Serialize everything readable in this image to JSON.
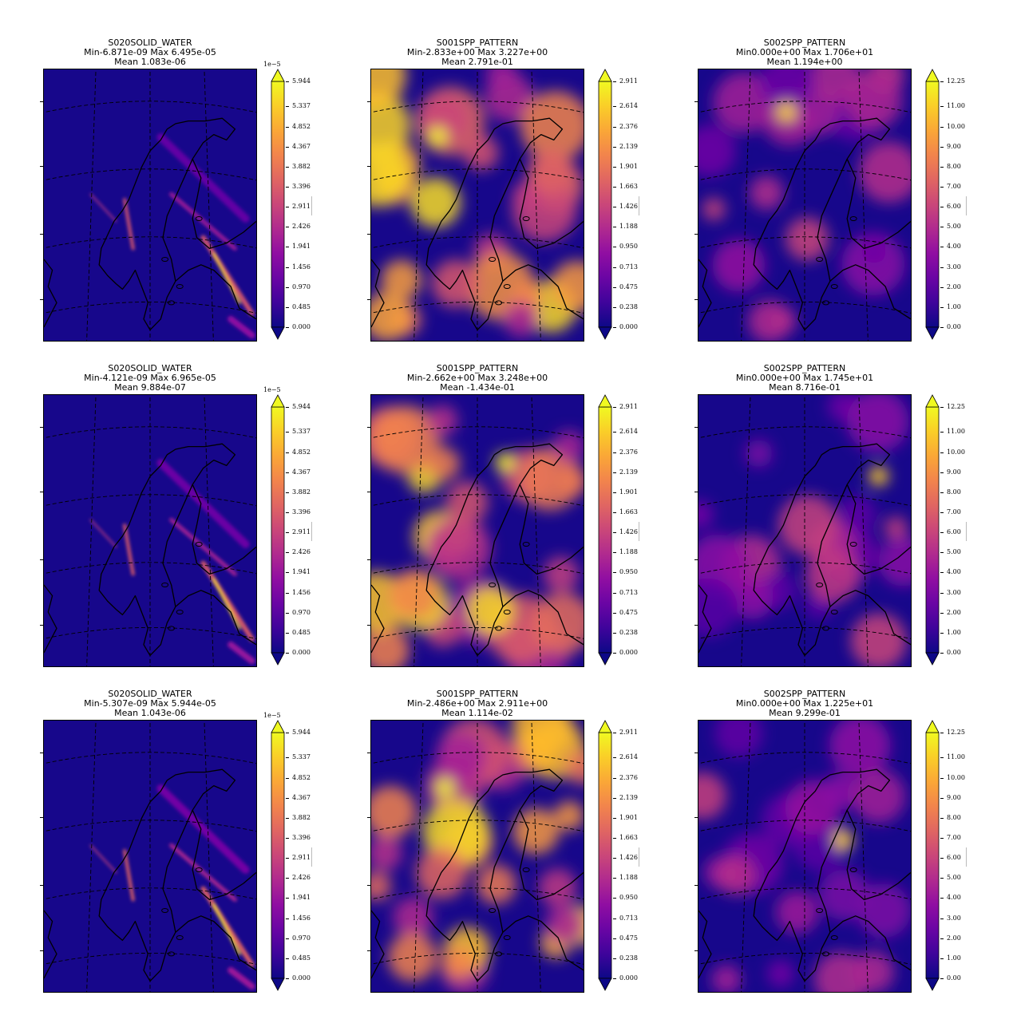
{
  "panels": [
    {
      "row": 0,
      "col": 0,
      "var": "S020SOLID_WATER",
      "minmax": "Min-6.871e-09 Max 6.495e-05",
      "mean": "Mean 1.083e-06",
      "cmap": "sw",
      "variant": 0
    },
    {
      "row": 0,
      "col": 1,
      "var": "S001SPP_PATTERN",
      "minmax": "Min-2.833e+00 Max 3.227e+00",
      "mean": "Mean 2.791e-01",
      "cmap": "p1",
      "variant": 0
    },
    {
      "row": 0,
      "col": 2,
      "var": "S002SPP_PATTERN",
      "minmax": "Min0.000e+00 Max 1.706e+01",
      "mean": "Mean 1.194e+00",
      "cmap": "p2",
      "variant": 0
    },
    {
      "row": 1,
      "col": 0,
      "var": "S020SOLID_WATER",
      "minmax": "Min-4.121e-09 Max 6.965e-05",
      "mean": "Mean 9.884e-07",
      "cmap": "sw",
      "variant": 1
    },
    {
      "row": 1,
      "col": 1,
      "var": "S001SPP_PATTERN",
      "minmax": "Min-2.662e+00 Max 3.248e+00",
      "mean": "Mean -1.434e-01",
      "cmap": "p1",
      "variant": 1
    },
    {
      "row": 1,
      "col": 2,
      "var": "S002SPP_PATTERN",
      "minmax": "Min0.000e+00 Max 1.745e+01",
      "mean": "Mean 8.716e-01",
      "cmap": "p2",
      "variant": 1
    },
    {
      "row": 2,
      "col": 0,
      "var": "S020SOLID_WATER",
      "minmax": "Min-5.307e-09 Max 5.944e-05",
      "mean": "Mean 1.043e-06",
      "cmap": "sw",
      "variant": 2
    },
    {
      "row": 2,
      "col": 1,
      "var": "S001SPP_PATTERN",
      "minmax": "Min-2.486e+00 Max 2.911e+00",
      "mean": "Mean 1.114e-02",
      "cmap": "p1",
      "variant": 2
    },
    {
      "row": 2,
      "col": 2,
      "var": "S002SPP_PATTERN",
      "minmax": "Min0.000e+00 Max 1.225e+01",
      "mean": "Mean 9.299e-01",
      "cmap": "p2",
      "variant": 2
    }
  ],
  "colorbars": {
    "sw": {
      "offset": "1e−5",
      "ticks": [
        "0.000",
        "0.485",
        "0.970",
        "1.456",
        "1.941",
        "2.426",
        "2.911",
        "3.396",
        "3.882",
        "4.367",
        "4.852",
        "5.337",
        "5.944"
      ],
      "vmax": 5.944
    },
    "p1": {
      "offset": "",
      "ticks": [
        "0.000",
        "0.238",
        "0.475",
        "0.713",
        "0.950",
        "1.188",
        "1.426",
        "1.663",
        "1.901",
        "2.139",
        "2.376",
        "2.614",
        "2.911"
      ],
      "vmax": 2.911
    },
    "p2": {
      "offset": "",
      "ticks": [
        "0.00",
        "1.00",
        "2.00",
        "3.00",
        "4.00",
        "5.00",
        "6.00",
        "7.00",
        "8.00",
        "9.00",
        "10.00",
        "11.00",
        "12.25"
      ],
      "vmax": 12.25
    }
  },
  "colormap": "plasma",
  "colors": {
    "low": "#0d0887",
    "mid": "#cc4778",
    "high": "#f0f921",
    "coast": "#000000",
    "grid": "#000000"
  },
  "chart_data": {
    "type": "heatmap",
    "layout": "3x3 grid of map panels",
    "colormap": "plasma",
    "colorbar_extend": "both",
    "gridlines": "dashed",
    "panels": [
      {
        "title": "S020SOLID_WATER",
        "subtitle": [
          "Min-6.871e-09 Max 6.495e-05",
          "Mean 1.083e-06"
        ],
        "colorbar_ticks": [
          0.0,
          0.485,
          0.97,
          1.456,
          1.941,
          2.426,
          2.911,
          3.396,
          3.882,
          4.367,
          4.852,
          5.337,
          5.944
        ],
        "colorbar_multiplier": "1e-5"
      },
      {
        "title": "S001SPP_PATTERN",
        "subtitle": [
          "Min-2.833e+00 Max 3.227e+00",
          "Mean 2.791e-01"
        ],
        "colorbar_ticks": [
          0.0,
          0.238,
          0.475,
          0.713,
          0.95,
          1.188,
          1.426,
          1.663,
          1.901,
          2.139,
          2.376,
          2.614,
          2.911
        ]
      },
      {
        "title": "S002SPP_PATTERN",
        "subtitle": [
          "Min0.000e+00 Max 1.706e+01",
          "Mean 1.194e+00"
        ],
        "colorbar_ticks": [
          0.0,
          1.0,
          2.0,
          3.0,
          4.0,
          5.0,
          6.0,
          7.0,
          8.0,
          9.0,
          10.0,
          11.0,
          12.25
        ]
      },
      {
        "title": "S020SOLID_WATER",
        "subtitle": [
          "Min-4.121e-09 Max 6.965e-05",
          "Mean 9.884e-07"
        ],
        "colorbar_ticks": [
          0.0,
          0.485,
          0.97,
          1.456,
          1.941,
          2.426,
          2.911,
          3.396,
          3.882,
          4.367,
          4.852,
          5.337,
          5.944
        ],
        "colorbar_multiplier": "1e-5"
      },
      {
        "title": "S001SPP_PATTERN",
        "subtitle": [
          "Min-2.662e+00 Max 3.248e+00",
          "Mean -1.434e-01"
        ],
        "colorbar_ticks": [
          0.0,
          0.238,
          0.475,
          0.713,
          0.95,
          1.188,
          1.426,
          1.663,
          1.901,
          2.139,
          2.376,
          2.614,
          2.911
        ]
      },
      {
        "title": "S002SPP_PATTERN",
        "subtitle": [
          "Min0.000e+00 Max 1.745e+01",
          "Mean 8.716e-01"
        ],
        "colorbar_ticks": [
          0.0,
          1.0,
          2.0,
          3.0,
          4.0,
          5.0,
          6.0,
          7.0,
          8.0,
          9.0,
          10.0,
          11.0,
          12.25
        ]
      },
      {
        "title": "S020SOLID_WATER",
        "subtitle": [
          "Min-5.307e-09 Max 5.944e-05",
          "Mean 1.043e-06"
        ],
        "colorbar_ticks": [
          0.0,
          0.485,
          0.97,
          1.456,
          1.941,
          2.426,
          2.911,
          3.396,
          3.882,
          4.367,
          4.852,
          5.337,
          5.944
        ],
        "colorbar_multiplier": "1e-5"
      },
      {
        "title": "S001SPP_PATTERN",
        "subtitle": [
          "Min-2.486e+00 Max 2.911e+00",
          "Mean 1.114e-02"
        ],
        "colorbar_ticks": [
          0.0,
          0.238,
          0.475,
          0.713,
          0.95,
          1.188,
          1.426,
          1.663,
          1.901,
          2.139,
          2.376,
          2.614,
          2.911
        ]
      },
      {
        "title": "S002SPP_PATTERN",
        "subtitle": [
          "Min0.000e+00 Max 1.225e+01",
          "Mean 9.299e-01"
        ],
        "colorbar_ticks": [
          0.0,
          1.0,
          2.0,
          3.0,
          4.0,
          5.0,
          6.0,
          7.0,
          8.0,
          9.0,
          10.0,
          11.0,
          12.25
        ]
      }
    ]
  }
}
